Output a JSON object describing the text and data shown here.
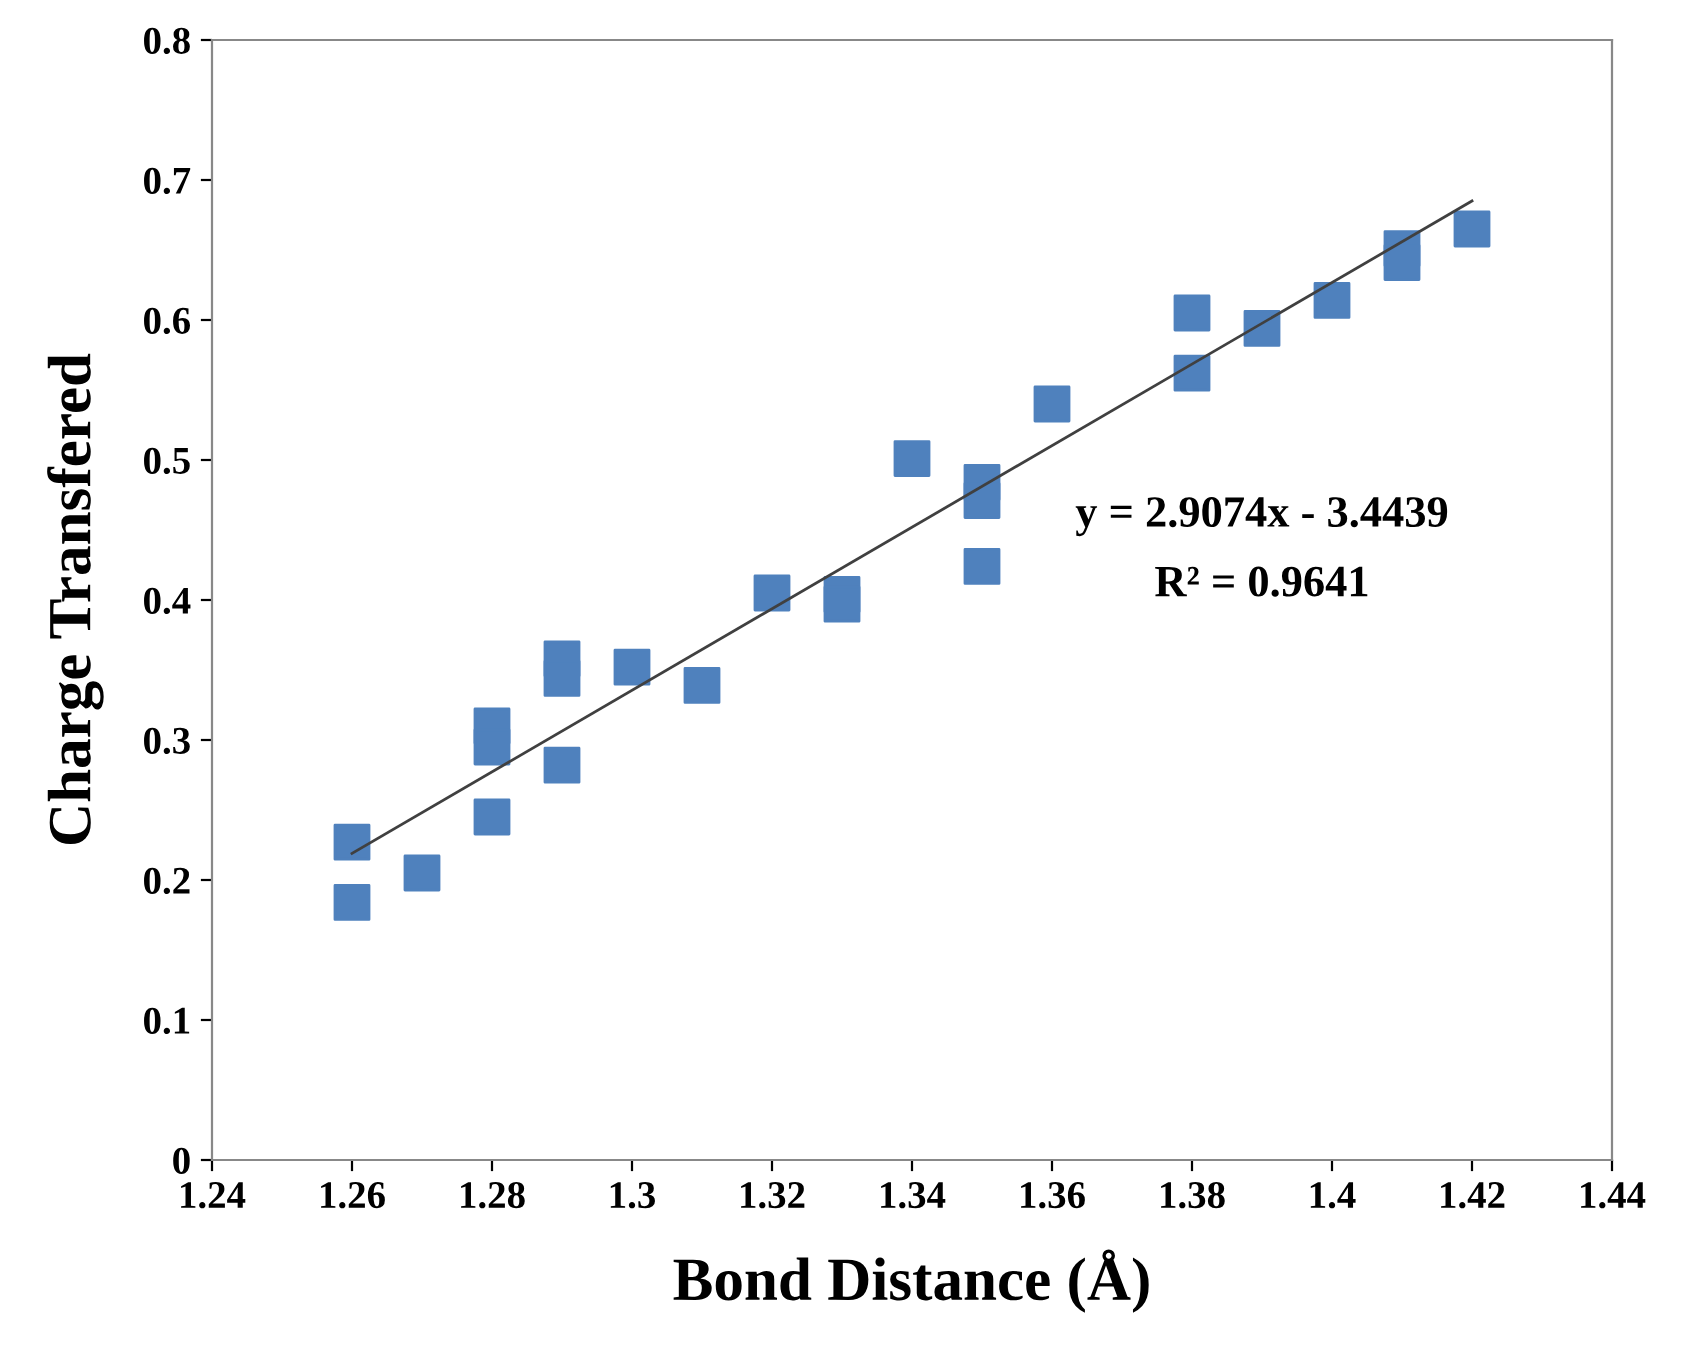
{
  "chart_data": {
    "type": "scatter",
    "xlabel": "Bond Distance (Å)",
    "ylabel": "Charge Transfered",
    "grid": false,
    "legend": false,
    "xlim": [
      1.24,
      1.44
    ],
    "xticks": [
      1.24,
      1.26,
      1.28,
      1.3,
      1.32,
      1.34,
      1.36,
      1.38,
      1.4,
      1.42,
      1.44
    ],
    "ylim": [
      0,
      0.8
    ],
    "yticks": [
      0,
      0.1,
      0.2,
      0.3,
      0.4,
      0.5,
      0.6,
      0.7,
      0.8
    ],
    "series": [
      {
        "marker": "square",
        "color": "#4f81bd",
        "x": [
          1.26,
          1.26,
          1.27,
          1.28,
          1.28,
          1.28,
          1.29,
          1.29,
          1.29,
          1.3,
          1.31,
          1.32,
          1.33,
          1.33,
          1.34,
          1.35,
          1.35,
          1.35,
          1.36,
          1.38,
          1.38,
          1.39,
          1.4,
          1.41,
          1.41,
          1.42
        ],
        "values": [
          0.227,
          0.184,
          0.205,
          0.31,
          0.295,
          0.245,
          0.358,
          0.344,
          0.282,
          0.352,
          0.339,
          0.405,
          0.404,
          0.397,
          0.501,
          0.484,
          0.471,
          0.424,
          0.54,
          0.605,
          0.562,
          0.594,
          0.614,
          0.651,
          0.641,
          0.665
        ]
      },
      {
        "type": "line",
        "color": "#404040",
        "x": [
          1.26,
          1.42
        ],
        "values": [
          0.219,
          0.685
        ]
      }
    ],
    "annotations": [
      "y = 2.9074x - 3.4439",
      "R² = 0.9641"
    ]
  }
}
